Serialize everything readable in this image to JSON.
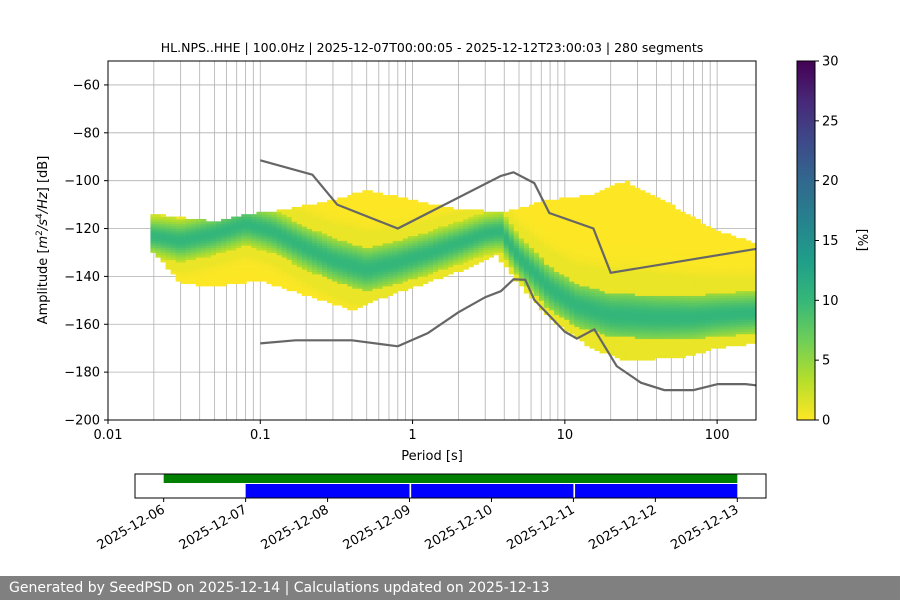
{
  "footer": "Generated by SeedPSD on 2025-12-14 | Calculations updated on 2025-12-13",
  "chart_data": {
    "type": "heatmap",
    "title": "HL.NPS..HHE | 100.0Hz | 2025-12-07T00:00:05 - 2025-12-12T23:00:03 | 280 segments",
    "xlabel": "Period [s]",
    "ylabel": "Amplitude [m²/s⁴/Hz] [dB]",
    "x_scale": "log",
    "xlim": [
      0.01,
      180
    ],
    "ylim": [
      -200,
      -50
    ],
    "grid": true,
    "x_ticks": [
      {
        "value": 0.01,
        "label": "0.01"
      },
      {
        "value": 0.1,
        "label": "0.1"
      },
      {
        "value": 1,
        "label": "1"
      },
      {
        "value": 10,
        "label": "10"
      },
      {
        "value": 100,
        "label": "100"
      }
    ],
    "y_ticks": [
      -60,
      -80,
      -100,
      -120,
      -140,
      -160,
      -180,
      -200
    ],
    "colorbar": {
      "label": "[%]",
      "range": [
        0,
        30
      ],
      "ticks": [
        0,
        5,
        10,
        15,
        20,
        25,
        30
      ],
      "colormap": [
        "#fde725",
        "#b5de2b",
        "#6ece58",
        "#35b779",
        "#1f9e89",
        "#26828e",
        "#31688e",
        "#3e4989",
        "#482878",
        "#440154"
      ]
    },
    "psd_density": {
      "description_points": "central trace (period s, dB)",
      "mode_curve": [
        [
          0.02,
          -123
        ],
        [
          0.03,
          -125
        ],
        [
          0.05,
          -122
        ],
        [
          0.08,
          -118
        ],
        [
          0.12,
          -121
        ],
        [
          0.2,
          -128
        ],
        [
          0.3,
          -133
        ],
        [
          0.5,
          -137
        ],
        [
          0.8,
          -134
        ],
        [
          1.3,
          -130
        ],
        [
          2,
          -126
        ],
        [
          3,
          -122
        ],
        [
          3.8,
          -121
        ],
        [
          5,
          -132
        ],
        [
          8,
          -145
        ],
        [
          12,
          -152
        ],
        [
          20,
          -156
        ],
        [
          40,
          -157
        ],
        [
          70,
          -157
        ],
        [
          100,
          -156
        ],
        [
          180,
          -155
        ]
      ],
      "upper_envelope": [
        [
          0.02,
          -114
        ],
        [
          0.05,
          -117
        ],
        [
          0.08,
          -114
        ],
        [
          0.15,
          -112
        ],
        [
          0.3,
          -108
        ],
        [
          0.5,
          -104
        ],
        [
          1,
          -108
        ],
        [
          2,
          -112
        ],
        [
          4,
          -113
        ],
        [
          8,
          -108
        ],
        [
          15,
          -106
        ],
        [
          25,
          -100
        ],
        [
          50,
          -110
        ],
        [
          100,
          -121
        ],
        [
          180,
          -126
        ]
      ],
      "lower_envelope": [
        [
          0.02,
          -130
        ],
        [
          0.03,
          -143
        ],
        [
          0.05,
          -144
        ],
        [
          0.1,
          -142
        ],
        [
          0.2,
          -148
        ],
        [
          0.4,
          -154
        ],
        [
          0.7,
          -148
        ],
        [
          1.2,
          -143
        ],
        [
          2,
          -138
        ],
        [
          3.5,
          -131
        ],
        [
          5,
          -143
        ],
        [
          8,
          -158
        ],
        [
          15,
          -170
        ],
        [
          25,
          -175
        ],
        [
          60,
          -174
        ],
        [
          100,
          -170
        ],
        [
          180,
          -168
        ]
      ]
    },
    "noise_models": [
      {
        "model": "high",
        "points": [
          [
            0.1,
            -91.5
          ],
          [
            0.22,
            -97.5
          ],
          [
            0.32,
            -110
          ],
          [
            0.8,
            -120
          ],
          [
            3.8,
            -98
          ],
          [
            4.6,
            -96.5
          ],
          [
            6.3,
            -101
          ],
          [
            7.9,
            -113.5
          ],
          [
            15.4,
            -120
          ],
          [
            20,
            -138.5
          ],
          [
            180,
            -128.5
          ]
        ]
      },
      {
        "model": "low",
        "points": [
          [
            0.1,
            -168
          ],
          [
            0.17,
            -166.7
          ],
          [
            0.4,
            -166.7
          ],
          [
            0.8,
            -169.2
          ],
          [
            1.26,
            -163.7
          ],
          [
            2,
            -155
          ],
          [
            3,
            -148.7
          ],
          [
            3.8,
            -146.2
          ],
          [
            4.6,
            -141.2
          ],
          [
            5.5,
            -141.4
          ],
          [
            6.3,
            -149.8
          ],
          [
            10,
            -163.1
          ],
          [
            12,
            -166
          ],
          [
            15.6,
            -162.1
          ],
          [
            21.9,
            -177.5
          ],
          [
            31.6,
            -184.4
          ],
          [
            45,
            -187.5
          ],
          [
            70,
            -187.5
          ],
          [
            101,
            -185
          ],
          [
            154,
            -185
          ],
          [
            180,
            -185.5
          ]
        ]
      }
    ],
    "timeline": {
      "ticks": [
        "2025-12-06",
        "2025-12-07",
        "2025-12-08",
        "2025-12-09",
        "2025-12-10",
        "2025-12-11",
        "2025-12-12",
        "2025-12-13"
      ],
      "range_days": [
        -0.35,
        7.35
      ],
      "green_bar": {
        "start_day": 0,
        "end_day": 7,
        "color": "#008000"
      },
      "blue_bars": [
        {
          "start_day": 1,
          "end_day": 3,
          "color": "#0000ff"
        },
        {
          "start_day": 3.02,
          "end_day": 5,
          "color": "#0000ff"
        },
        {
          "start_day": 5.02,
          "end_day": 7,
          "color": "#0000ff"
        }
      ]
    }
  }
}
